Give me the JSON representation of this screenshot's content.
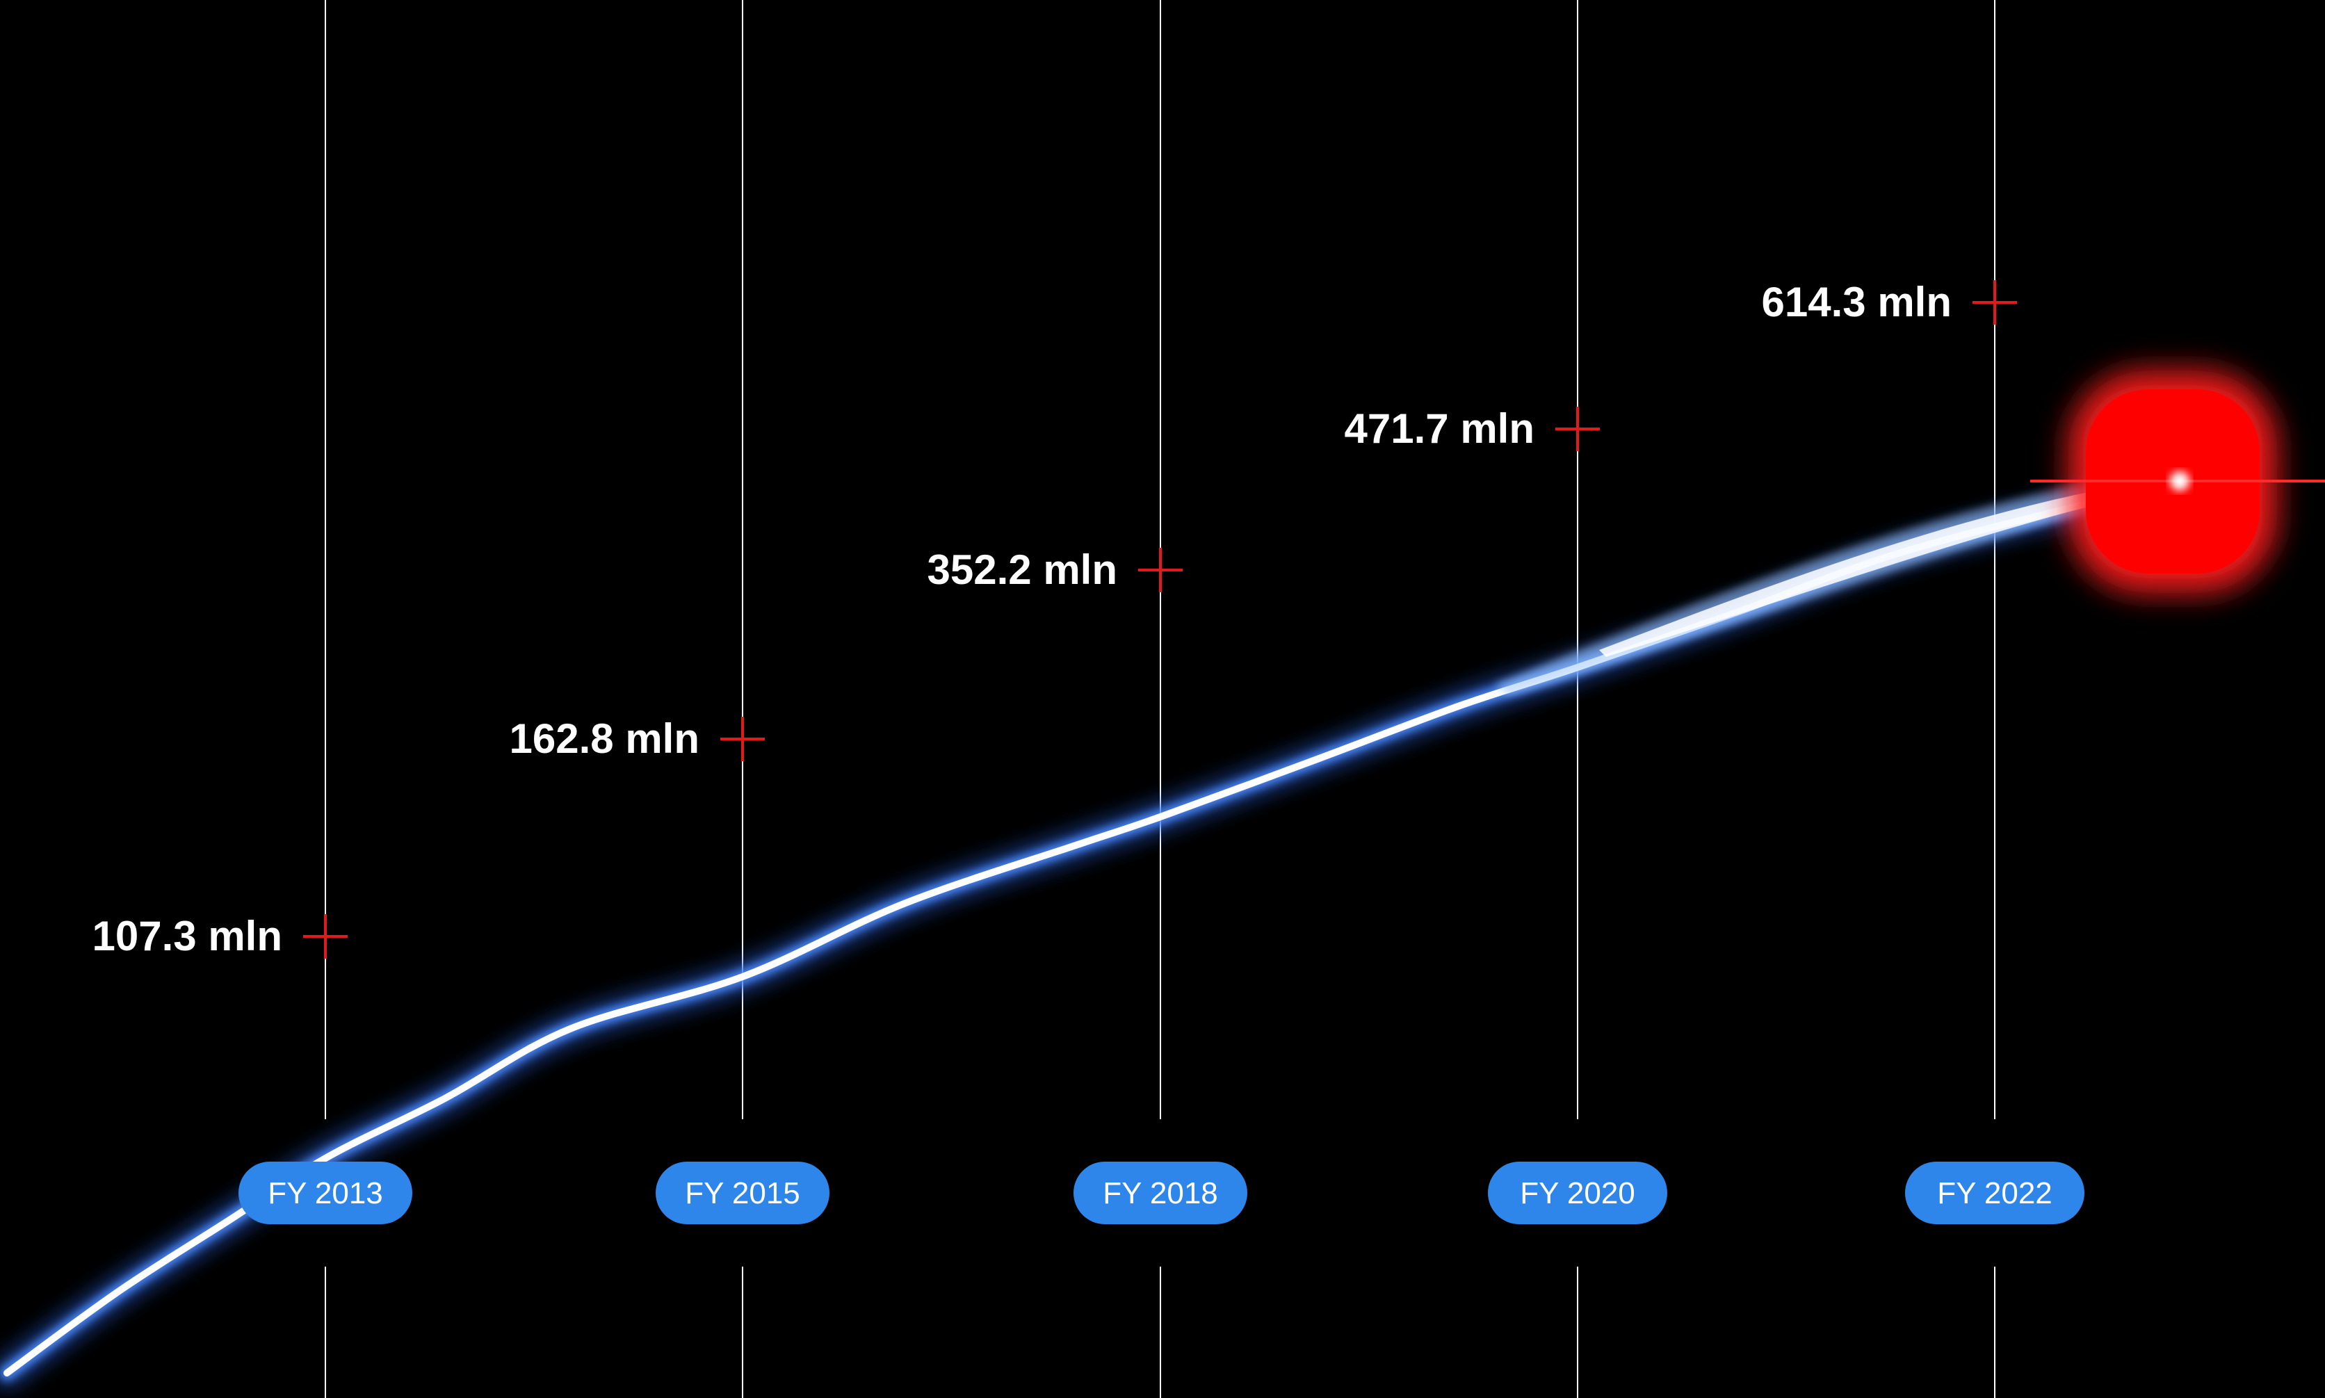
{
  "chart_data": {
    "type": "line",
    "categories": [
      "FY 2013",
      "FY 2015",
      "FY 2018",
      "FY 2020",
      "FY 2022"
    ],
    "values": [
      107.3,
      162.8,
      352.2,
      471.7,
      614.3
    ],
    "value_labels": [
      "107.3 mln",
      "162.8 mln",
      "352.2 mln",
      "471.7 mln",
      "614.3 mln"
    ],
    "title": "",
    "xlabel": "",
    "ylabel": "",
    "grid": true,
    "legend": "none"
  },
  "colors": {
    "background": "#000000",
    "gridline": "#ffffff",
    "pill": "#2f86ea",
    "marker": "#e11b1b",
    "trail_core": "#ffffff",
    "trail_glow": "#2a5fd6",
    "comet_head": "#ff1a1a"
  }
}
